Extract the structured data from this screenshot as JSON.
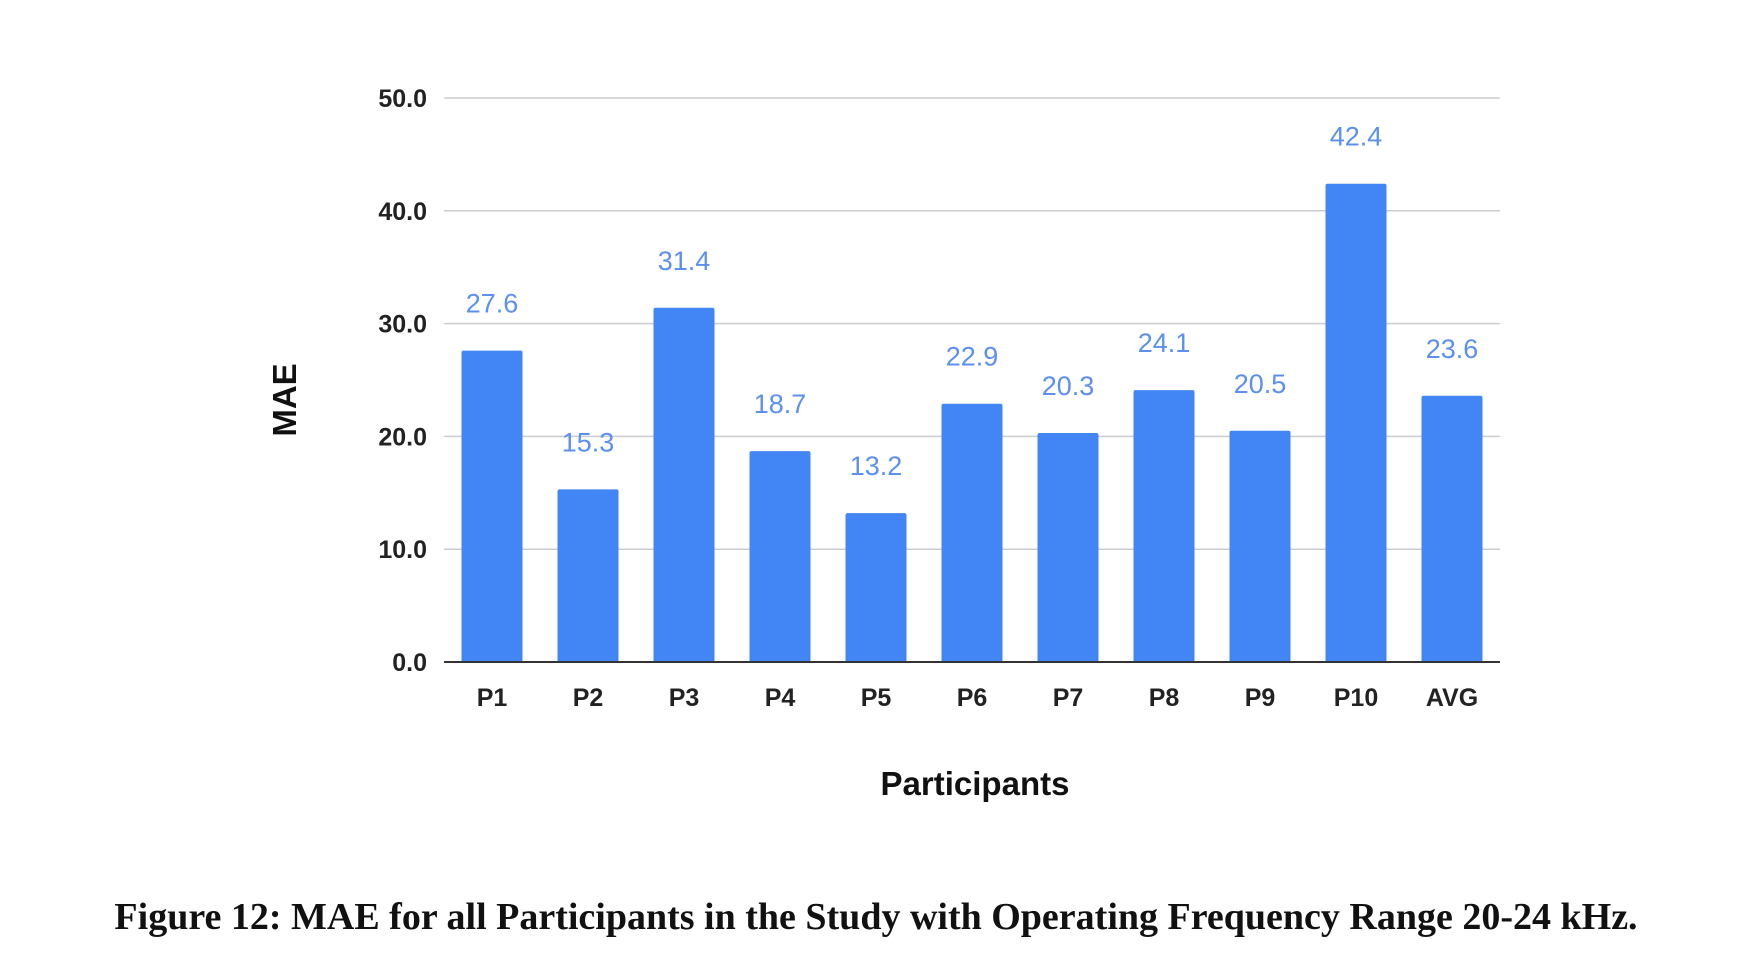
{
  "caption": "Figure 12: MAE for all Participants in the Study with Operating Frequency Range 20-24 kHz.",
  "colors": {
    "bar": "#4285f4",
    "data_label": "#5b8ff0",
    "gridline": "#cccccc",
    "axis": "#333333"
  },
  "chart_data": {
    "type": "bar",
    "title": "",
    "xlabel": "Participants",
    "ylabel": "MAE",
    "categories": [
      "P1",
      "P2",
      "P3",
      "P4",
      "P5",
      "P6",
      "P7",
      "P8",
      "P9",
      "P10",
      "AVG"
    ],
    "values": [
      27.6,
      15.3,
      31.4,
      18.7,
      13.2,
      22.9,
      20.3,
      24.1,
      20.5,
      42.4,
      23.6
    ],
    "value_labels": [
      "27.6",
      "15.3",
      "31.4",
      "18.7",
      "13.2",
      "22.9",
      "20.3",
      "24.1",
      "20.5",
      "42.4",
      "23.6"
    ],
    "ylim": [
      0,
      50
    ],
    "yticks": [
      0,
      10,
      20,
      30,
      40,
      50
    ],
    "ytick_labels": [
      "0.0",
      "10.0",
      "20.0",
      "30.0",
      "40.0",
      "50.0"
    ],
    "grid": true,
    "legend": "none"
  }
}
